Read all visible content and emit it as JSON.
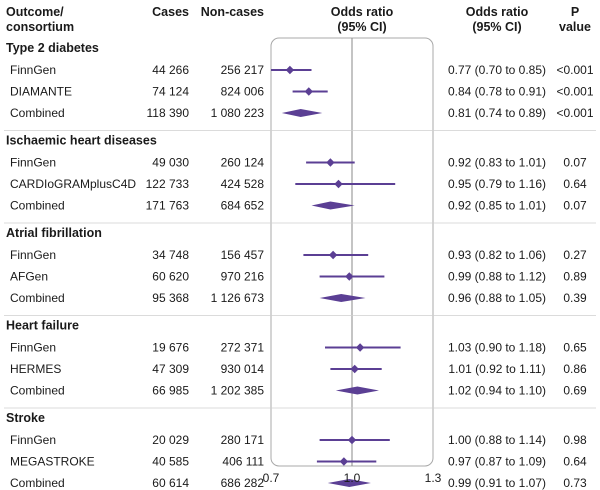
{
  "colors": {
    "marker": "#5b3f94",
    "panel_border": "#a8a8a8",
    "ref_line": "#8a8a8a",
    "divider": "#cfcfcf"
  },
  "headers": {
    "outcome_line1": "Outcome/",
    "outcome_line2": "consortium",
    "cases": "Cases",
    "noncases": "Non-cases",
    "or_plot_line1": "Odds ratio",
    "or_plot_line2": "(95% CI)",
    "or_text_line1": "Odds ratio",
    "or_text_line2": "(95% CI)",
    "p_line1": "P",
    "p_line2": "value"
  },
  "chart_data": {
    "type": "forest",
    "xlabel": "Odds ratio (95% CI)",
    "xlim": [
      0.7,
      1.3
    ],
    "x_ticks": [
      0.7,
      1.0,
      1.3
    ],
    "x_tick_labels": [
      "0.7",
      "1.0",
      "1.3"
    ],
    "reference_line": 1.0,
    "groups": [
      {
        "name": "Type 2 diabetes",
        "rows": [
          {
            "label": "FinnGen",
            "cases": "44 266",
            "noncases": "256 217",
            "or": 0.77,
            "lo": 0.7,
            "hi": 0.85,
            "ci_text": "0.77 (0.70 to 0.85)",
            "p": "<0.001",
            "combined": false
          },
          {
            "label": "DIAMANTE",
            "cases": "74 124",
            "noncases": "824 006",
            "or": 0.84,
            "lo": 0.78,
            "hi": 0.91,
            "ci_text": "0.84 (0.78 to 0.91)",
            "p": "<0.001",
            "combined": false
          },
          {
            "label": "Combined",
            "cases": "118 390",
            "noncases": "1 080 223",
            "or": 0.81,
            "lo": 0.74,
            "hi": 0.89,
            "ci_text": "0.81 (0.74 to 0.89)",
            "p": "<0.001",
            "combined": true
          }
        ]
      },
      {
        "name": "Ischaemic heart diseases",
        "rows": [
          {
            "label": "FinnGen",
            "cases": "49 030",
            "noncases": "260 124",
            "or": 0.92,
            "lo": 0.83,
            "hi": 1.01,
            "ci_text": "0.92 (0.83 to 1.01)",
            "p": "0.07",
            "combined": false
          },
          {
            "label": "CARDIoGRAMplusC4D",
            "cases": "122 733",
            "noncases": "424 528",
            "or": 0.95,
            "lo": 0.79,
            "hi": 1.16,
            "ci_text": "0.95 (0.79 to 1.16)",
            "p": "0.64",
            "combined": false
          },
          {
            "label": "Combined",
            "cases": "171 763",
            "noncases": "684 652",
            "or": 0.92,
            "lo": 0.85,
            "hi": 1.01,
            "ci_text": "0.92 (0.85 to 1.01)",
            "p": "0.07",
            "combined": true
          }
        ]
      },
      {
        "name": "Atrial fibrillation",
        "rows": [
          {
            "label": "FinnGen",
            "cases": "34 748",
            "noncases": "156 457",
            "or": 0.93,
            "lo": 0.82,
            "hi": 1.06,
            "ci_text": "0.93 (0.82 to 1.06)",
            "p": "0.27",
            "combined": false
          },
          {
            "label": "AFGen",
            "cases": "60 620",
            "noncases": "970 216",
            "or": 0.99,
            "lo": 0.88,
            "hi": 1.12,
            "ci_text": "0.99 (0.88 to 1.12)",
            "p": "0.89",
            "combined": false
          },
          {
            "label": "Combined",
            "cases": "95 368",
            "noncases": "1 126 673",
            "or": 0.96,
            "lo": 0.88,
            "hi": 1.05,
            "ci_text": "0.96 (0.88 to 1.05)",
            "p": "0.39",
            "combined": true
          }
        ]
      },
      {
        "name": "Heart failure",
        "rows": [
          {
            "label": "FinnGen",
            "cases": "19 676",
            "noncases": "272 371",
            "or": 1.03,
            "lo": 0.9,
            "hi": 1.18,
            "ci_text": "1.03 (0.90 to 1.18)",
            "p": "0.65",
            "combined": false
          },
          {
            "label": "HERMES",
            "cases": "47 309",
            "noncases": "930 014",
            "or": 1.01,
            "lo": 0.92,
            "hi": 1.11,
            "ci_text": "1.01 (0.92 to 1.11)",
            "p": "0.86",
            "combined": false
          },
          {
            "label": "Combined",
            "cases": "66 985",
            "noncases": "1 202 385",
            "or": 1.02,
            "lo": 0.94,
            "hi": 1.1,
            "ci_text": "1.02 (0.94 to 1.10)",
            "p": "0.69",
            "combined": true
          }
        ]
      },
      {
        "name": "Stroke",
        "rows": [
          {
            "label": "FinnGen",
            "cases": "20 029",
            "noncases": "280 171",
            "or": 1.0,
            "lo": 0.88,
            "hi": 1.14,
            "ci_text": "1.00 (0.88 to 1.14)",
            "p": "0.98",
            "combined": false
          },
          {
            "label": "MEGASTROKE",
            "cases": "40 585",
            "noncases": "406 111",
            "or": 0.97,
            "lo": 0.87,
            "hi": 1.09,
            "ci_text": "0.97 (0.87 to 1.09)",
            "p": "0.64",
            "combined": false
          },
          {
            "label": "Combined",
            "cases": "60 614",
            "noncases": "686 282",
            "or": 0.99,
            "lo": 0.91,
            "hi": 1.07,
            "ci_text": "0.99 (0.91 to 1.07)",
            "p": "0.73",
            "combined": true
          }
        ]
      }
    ]
  }
}
